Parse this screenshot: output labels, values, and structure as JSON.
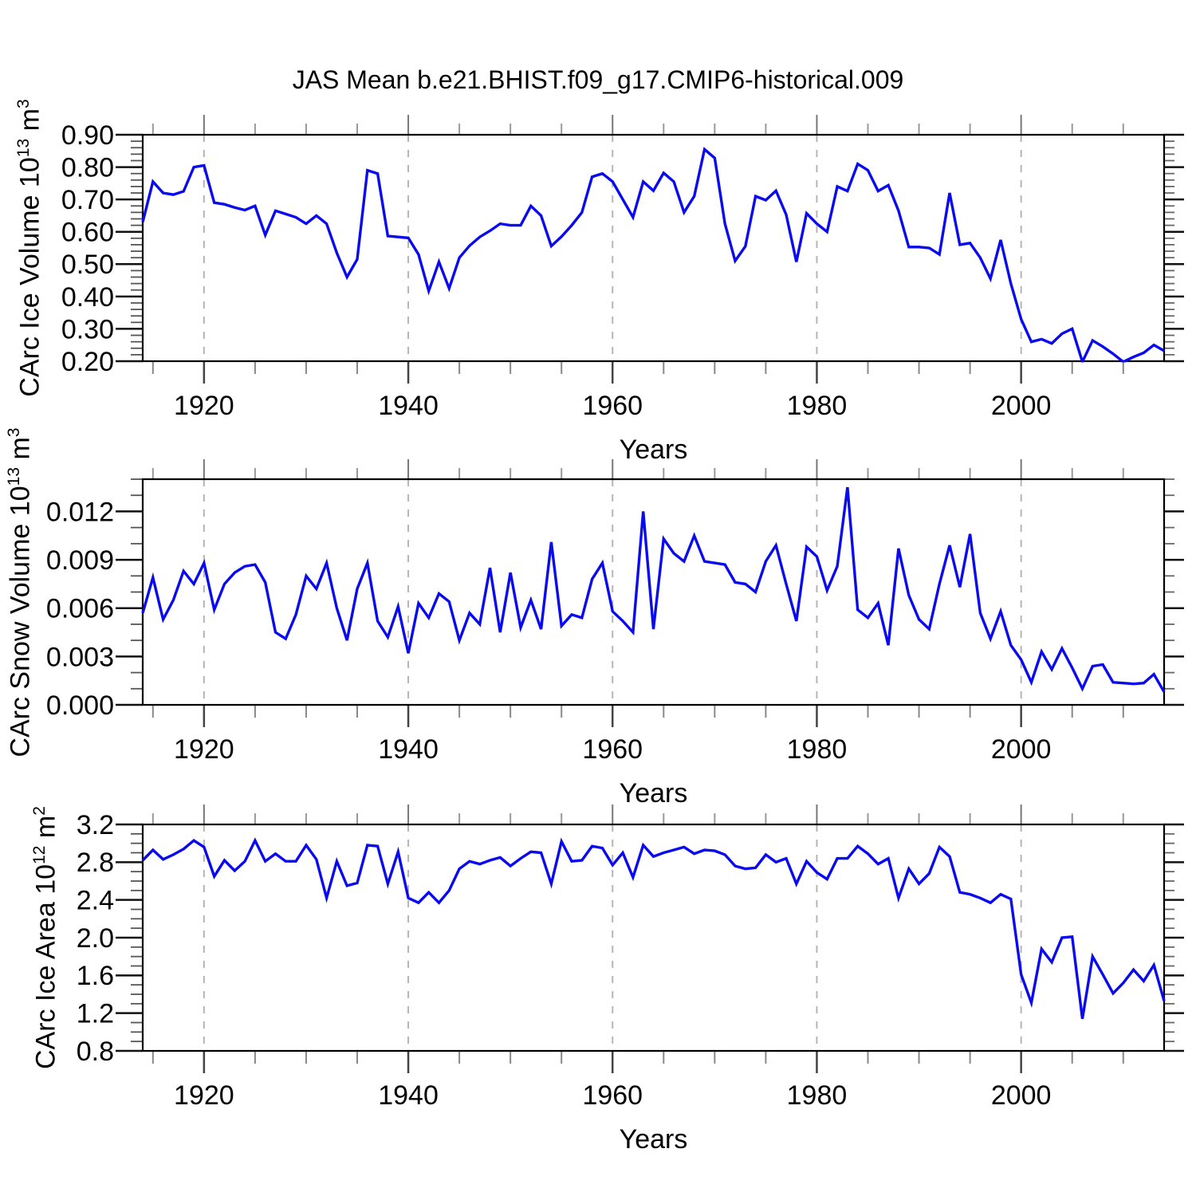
{
  "title": "JAS Mean b.e21.BHIST.f09_g17.CMIP6-historical.009",
  "line_color": "#0a0aee",
  "grid_color": "#b5b5b5",
  "chart_data": {
    "type": "line",
    "suptitle": "JAS Mean b.e21.BHIST.f09_g17.CMIP6-historical.009",
    "xlabel": "Years",
    "legend": "none",
    "grid": "vertical-dashed-at-labeled-x-ticks",
    "x_range": [
      1914,
      2014
    ],
    "x_labeled_ticks": [
      1920,
      1940,
      1960,
      1980,
      2000
    ],
    "x_minor_step": 5,
    "years": [
      1914,
      1915,
      1916,
      1917,
      1918,
      1919,
      1920,
      1921,
      1922,
      1923,
      1924,
      1925,
      1926,
      1927,
      1928,
      1929,
      1930,
      1931,
      1932,
      1933,
      1934,
      1935,
      1936,
      1937,
      1938,
      1939,
      1940,
      1941,
      1942,
      1943,
      1944,
      1945,
      1946,
      1947,
      1948,
      1949,
      1950,
      1951,
      1952,
      1953,
      1954,
      1955,
      1956,
      1957,
      1958,
      1959,
      1960,
      1961,
      1962,
      1963,
      1964,
      1965,
      1966,
      1967,
      1968,
      1969,
      1970,
      1971,
      1972,
      1973,
      1974,
      1975,
      1976,
      1977,
      1978,
      1979,
      1980,
      1981,
      1982,
      1983,
      1984,
      1985,
      1986,
      1987,
      1988,
      1989,
      1990,
      1991,
      1992,
      1993,
      1994,
      1995,
      1996,
      1997,
      1998,
      1999,
      2000,
      2001,
      2002,
      2003,
      2004,
      2005,
      2006,
      2007,
      2008,
      2009,
      2010,
      2011,
      2012,
      2013,
      2014
    ],
    "panels": [
      {
        "name": "ice-volume",
        "ylabel_text": "CArc Ice Volume 10^13 m^3",
        "ylabel_parts": [
          {
            "t": "CArc Ice Volume 10"
          },
          {
            "t": "13",
            "sup": true
          },
          {
            "t": " m"
          },
          {
            "t": "3",
            "sup": true
          }
        ],
        "ylim": [
          0.2,
          0.9
        ],
        "y_major_step": 0.1,
        "y_minor_step": 0.02,
        "ytick_decimals": 2,
        "ytick_labels": [
          "0.20",
          "0.30",
          "0.40",
          "0.50",
          "0.60",
          "0.70",
          "0.80",
          "0.90"
        ],
        "values": [
          0.63,
          0.755,
          0.72,
          0.715,
          0.725,
          0.8,
          0.805,
          0.69,
          0.685,
          0.675,
          0.667,
          0.68,
          0.59,
          0.665,
          0.655,
          0.645,
          0.625,
          0.65,
          0.625,
          0.535,
          0.46,
          0.515,
          0.79,
          0.78,
          0.587,
          0.584,
          0.581,
          0.53,
          0.417,
          0.507,
          0.425,
          0.52,
          0.557,
          0.584,
          0.603,
          0.625,
          0.62,
          0.62,
          0.68,
          0.65,
          0.556,
          0.585,
          0.62,
          0.66,
          0.77,
          0.78,
          0.755,
          0.7,
          0.645,
          0.755,
          0.727,
          0.782,
          0.755,
          0.66,
          0.71,
          0.855,
          0.828,
          0.625,
          0.51,
          0.555,
          0.71,
          0.698,
          0.727,
          0.653,
          0.507,
          0.657,
          0.625,
          0.6,
          0.74,
          0.726,
          0.81,
          0.79,
          0.726,
          0.744,
          0.665,
          0.553,
          0.553,
          0.55,
          0.53,
          0.72,
          0.56,
          0.565,
          0.52,
          0.455,
          0.575,
          0.44,
          0.33,
          0.26,
          0.268,
          0.255,
          0.285,
          0.3,
          0.198,
          0.264,
          0.245,
          0.223,
          0.198,
          0.213,
          0.226,
          0.25,
          0.232
        ]
      },
      {
        "name": "snow-volume",
        "ylabel_text": "CArc Snow Volume 10^13 m^3",
        "ylabel_parts": [
          {
            "t": "CArc Snow Volume 10"
          },
          {
            "t": "13",
            "sup": true
          },
          {
            "t": " m"
          },
          {
            "t": "3",
            "sup": true
          }
        ],
        "ylim": [
          0.0,
          0.014
        ],
        "y_major_step": 0.003,
        "y_minor_step": 0.001,
        "ytick_decimals": 3,
        "ytick_labels": [
          "0.000",
          "0.003",
          "0.006",
          "0.009",
          "0.012"
        ],
        "values": [
          0.0057,
          0.0079,
          0.0053,
          0.0065,
          0.0083,
          0.0075,
          0.0088,
          0.0059,
          0.0075,
          0.0082,
          0.0086,
          0.0087,
          0.0076,
          0.0045,
          0.0041,
          0.0056,
          0.008,
          0.0072,
          0.0088,
          0.006,
          0.004,
          0.0072,
          0.0088,
          0.0052,
          0.0042,
          0.0061,
          0.0032,
          0.0063,
          0.0054,
          0.0069,
          0.0064,
          0.004,
          0.0057,
          0.005,
          0.0085,
          0.0045,
          0.0082,
          0.0048,
          0.0065,
          0.0047,
          0.0101,
          0.0049,
          0.0056,
          0.0054,
          0.0078,
          0.0088,
          0.0058,
          0.0052,
          0.0045,
          0.012,
          0.0047,
          0.0103,
          0.0094,
          0.0089,
          0.0105,
          0.0089,
          0.0088,
          0.0087,
          0.0076,
          0.0075,
          0.007,
          0.0089,
          0.0099,
          0.0075,
          0.0052,
          0.0098,
          0.0092,
          0.0071,
          0.0086,
          0.0135,
          0.0059,
          0.0054,
          0.0063,
          0.0037,
          0.0097,
          0.0068,
          0.0053,
          0.0047,
          0.0075,
          0.0099,
          0.0073,
          0.0106,
          0.0057,
          0.0041,
          0.0058,
          0.0037,
          0.0028,
          0.0014,
          0.0033,
          0.0022,
          0.0035,
          0.0023,
          0.001,
          0.0024,
          0.0025,
          0.0014,
          0.00135,
          0.0013,
          0.00135,
          0.0019,
          0.0008
        ]
      },
      {
        "name": "ice-area",
        "ylabel_text": "CArc Ice Area 10^12 m^2",
        "ylabel_parts": [
          {
            "t": "CArc Ice Area 10"
          },
          {
            "t": "12",
            "sup": true
          },
          {
            "t": " m"
          },
          {
            "t": "2",
            "sup": true
          }
        ],
        "ylim": [
          0.8,
          3.2
        ],
        "y_major_step": 0.4,
        "y_minor_step": 0.1,
        "ytick_decimals": 1,
        "ytick_labels": [
          "0.8",
          "1.2",
          "1.6",
          "2.0",
          "2.4",
          "2.8",
          "3.2"
        ],
        "values": [
          2.82,
          2.93,
          2.83,
          2.88,
          2.94,
          3.03,
          2.96,
          2.65,
          2.82,
          2.71,
          2.81,
          3.03,
          2.81,
          2.89,
          2.81,
          2.81,
          2.98,
          2.83,
          2.42,
          2.81,
          2.55,
          2.58,
          2.98,
          2.97,
          2.57,
          2.91,
          2.42,
          2.37,
          2.48,
          2.37,
          2.5,
          2.73,
          2.81,
          2.78,
          2.82,
          2.85,
          2.76,
          2.84,
          2.91,
          2.9,
          2.57,
          3.02,
          2.81,
          2.82,
          2.97,
          2.95,
          2.77,
          2.9,
          2.64,
          2.98,
          2.86,
          2.9,
          2.93,
          2.96,
          2.89,
          2.93,
          2.92,
          2.88,
          2.76,
          2.73,
          2.74,
          2.88,
          2.8,
          2.84,
          2.57,
          2.81,
          2.69,
          2.62,
          2.84,
          2.84,
          2.97,
          2.89,
          2.78,
          2.84,
          2.42,
          2.73,
          2.57,
          2.68,
          2.96,
          2.86,
          2.48,
          2.46,
          2.42,
          2.37,
          2.46,
          2.41,
          1.61,
          1.31,
          1.88,
          1.74,
          2.0,
          2.01,
          1.14,
          1.8,
          1.61,
          1.41,
          1.52,
          1.66,
          1.54,
          1.71,
          1.33
        ]
      }
    ]
  }
}
